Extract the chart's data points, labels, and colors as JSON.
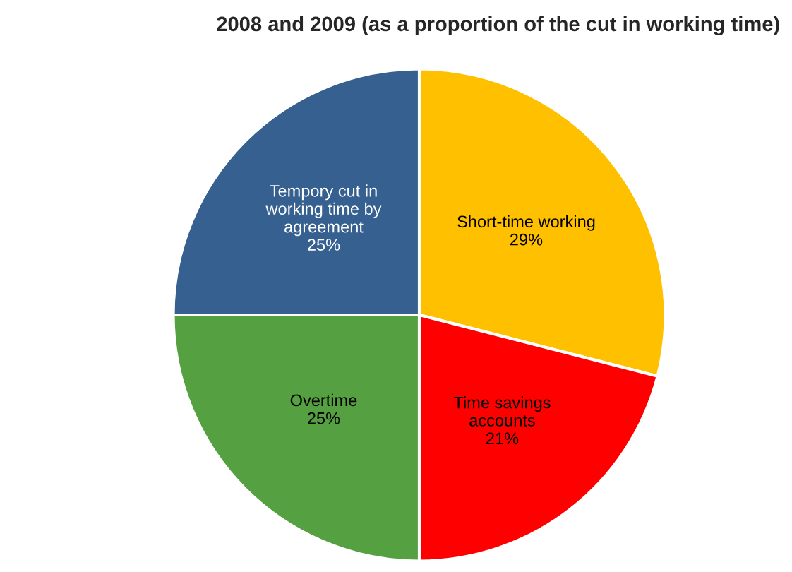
{
  "chart_data": {
    "type": "pie",
    "title": "2008 and 2009 (as a proportion of the cut in working time)",
    "categories": [
      "Short-time working",
      "Time savings\naccounts",
      "Overtime",
      "Tempory cut in\nworking time by\nagreement"
    ],
    "values": [
      29,
      21,
      25,
      25
    ],
    "colors": [
      "#ffc000",
      "#ff0000",
      "#55a040",
      "#35608f"
    ],
    "value_labels": [
      "29%",
      "21%",
      "25%",
      "25%"
    ]
  }
}
